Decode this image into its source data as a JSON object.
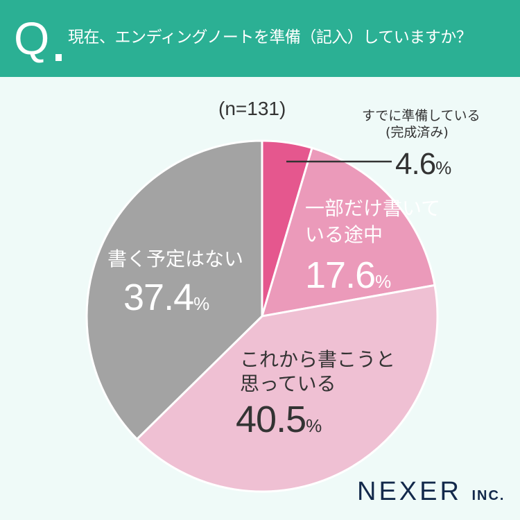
{
  "header": {
    "q": "Q",
    "title": "現在、エンディングノートを準備（記入）していますか？"
  },
  "sample": "(n=131)",
  "logo": {
    "main": "NEXER",
    "sub": "INC."
  },
  "chart_data": {
    "type": "pie",
    "title": "現在、エンディングノートを準備（記入）していますか？",
    "categories": [
      "すでに準備している（完成済み）",
      "一部だけ書いている途中",
      "これから書こうと思っている",
      "書く予定はない"
    ],
    "values": [
      4.6,
      17.6,
      40.5,
      37.4
    ],
    "unit": "%",
    "colors": [
      "#e5578e",
      "#eb9aba",
      "#efc0d3",
      "#a3a3a3"
    ],
    "labels": [
      {
        "line1": "すでに準備している",
        "line2": "(完成済み)",
        "value": "4.6"
      },
      {
        "line1": "一部だけ書いて",
        "line2": "いる途中",
        "value": "17.6"
      },
      {
        "line1": "これから書こうと",
        "line2": "思っている",
        "value": "40.5"
      },
      {
        "line1": "書く予定はない",
        "line2": "",
        "value": "37.4"
      }
    ],
    "percent_sign": "%"
  }
}
